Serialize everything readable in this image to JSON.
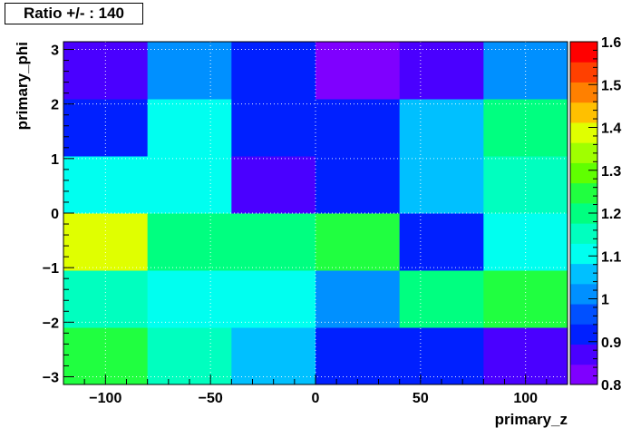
{
  "title": "Ratio +/- : 140",
  "chart_data": {
    "type": "heatmap",
    "title": "Ratio +/- : 140",
    "xlabel": "primary_z",
    "ylabel": "primary_phi",
    "x_edges": [
      -120,
      -80,
      -40,
      0,
      40,
      80,
      120
    ],
    "y_edges": [
      -3.14159,
      -2.0944,
      -1.0472,
      0,
      1.0472,
      2.0944,
      3.14159
    ],
    "x_ticks": [
      -100,
      -50,
      0,
      50,
      100
    ],
    "x_tick_labels": [
      "−100",
      "−50",
      "0",
      "50",
      "100"
    ],
    "y_ticks": [
      -3,
      -2,
      -1,
      0,
      1,
      2,
      3
    ],
    "y_tick_labels": [
      "−3",
      "−2",
      "−1",
      "0",
      "1",
      "2",
      "3"
    ],
    "xlim": [
      -120,
      120
    ],
    "ylim": [
      -3.14159,
      3.14159
    ],
    "zlim": [
      0.8,
      1.6
    ],
    "z_ticks": [
      0.8,
      0.9,
      1,
      1.1,
      1.2,
      1.3,
      1.4,
      1.5,
      1.6
    ],
    "z_tick_labels": [
      "0.8",
      "0.9",
      "1",
      "1.1",
      "1.2",
      "1.3",
      "1.4",
      "1.5",
      "1.6"
    ],
    "grid": true,
    "values": [
      [
        1.23,
        1.14,
        1.05,
        0.93,
        0.93,
        0.88
      ],
      [
        1.17,
        1.12,
        1.12,
        0.99,
        1.19,
        1.23
      ],
      [
        1.37,
        1.22,
        1.22,
        1.25,
        0.93,
        1.09
      ],
      [
        1.09,
        1.09,
        0.87,
        0.94,
        1.05,
        1.15
      ],
      [
        0.94,
        1.09,
        0.93,
        0.93,
        1.05,
        1.19
      ],
      [
        0.88,
        0.99,
        0.93,
        0.83,
        0.88,
        0.99
      ]
    ],
    "palette": [
      "#7f00ff",
      "#4a00ff",
      "#0020ff",
      "#0050ff",
      "#0090ff",
      "#00c0ff",
      "#00fff0",
      "#00ffbf",
      "#00ff80",
      "#20ff40",
      "#60ff00",
      "#a0ff00",
      "#e0ff00",
      "#ffc000",
      "#ff8000",
      "#ff4000",
      "#ff0000"
    ]
  }
}
